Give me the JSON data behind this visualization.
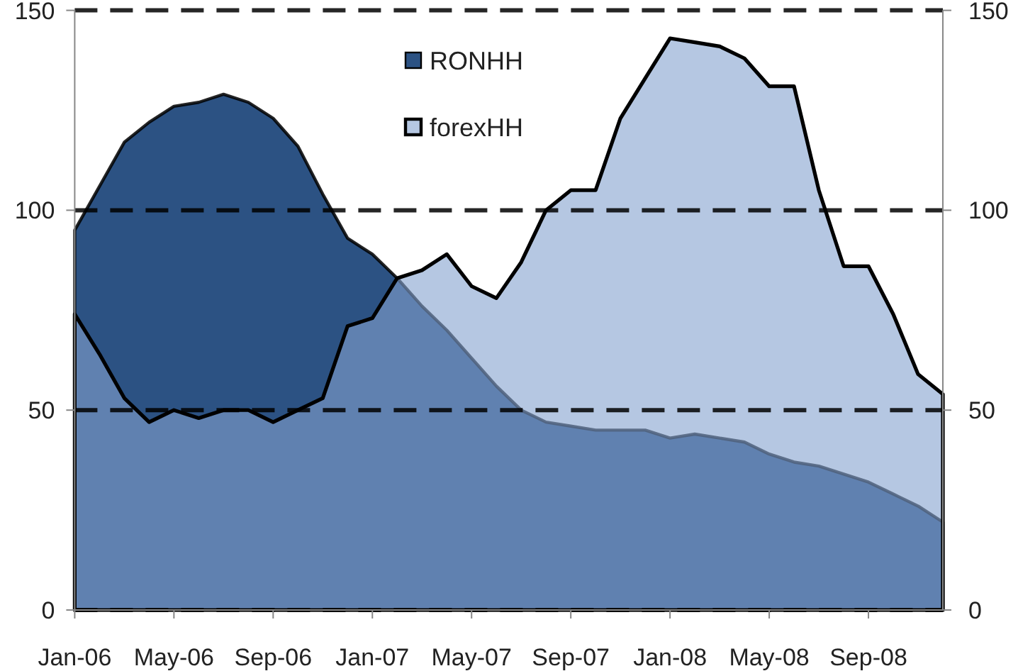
{
  "chart_data": {
    "type": "area",
    "categories": [
      "Jan-06",
      null,
      null,
      null,
      "May-06",
      null,
      null,
      null,
      "Sep-06",
      null,
      null,
      null,
      "Jan-07",
      null,
      null,
      null,
      "May-07",
      null,
      null,
      null,
      "Sep-07",
      null,
      null,
      null,
      "Jan-08",
      null,
      null,
      null,
      "May-08",
      null,
      null,
      null,
      "Sep-08",
      null,
      null,
      null
    ],
    "series": [
      {
        "name": "RONHH",
        "color": "#2c5283",
        "values": [
          95,
          106,
          117,
          122,
          126,
          127,
          129,
          127,
          123,
          116,
          104,
          93,
          89,
          83,
          76,
          70,
          63,
          56,
          50,
          47,
          46,
          45,
          45,
          45,
          43,
          44,
          43,
          42,
          39,
          37,
          36,
          34,
          32,
          29,
          26,
          22
        ]
      },
      {
        "name": "forexHH",
        "color": "#84a2cf",
        "values": [
          74,
          64,
          53,
          47,
          50,
          48,
          50,
          50,
          47,
          50,
          53,
          71,
          73,
          83,
          85,
          89,
          81,
          78,
          87,
          100,
          105,
          105,
          123,
          133,
          143,
          142,
          141,
          138,
          131,
          131,
          105,
          86,
          86,
          74,
          59,
          54
        ]
      }
    ],
    "ylim": [
      0,
      150
    ],
    "yticks": [
      0,
      50,
      100,
      150
    ],
    "y2lim": [
      0,
      150
    ],
    "y2ticks": [
      0,
      50,
      100,
      150
    ],
    "grid": "y",
    "legend": "top"
  }
}
